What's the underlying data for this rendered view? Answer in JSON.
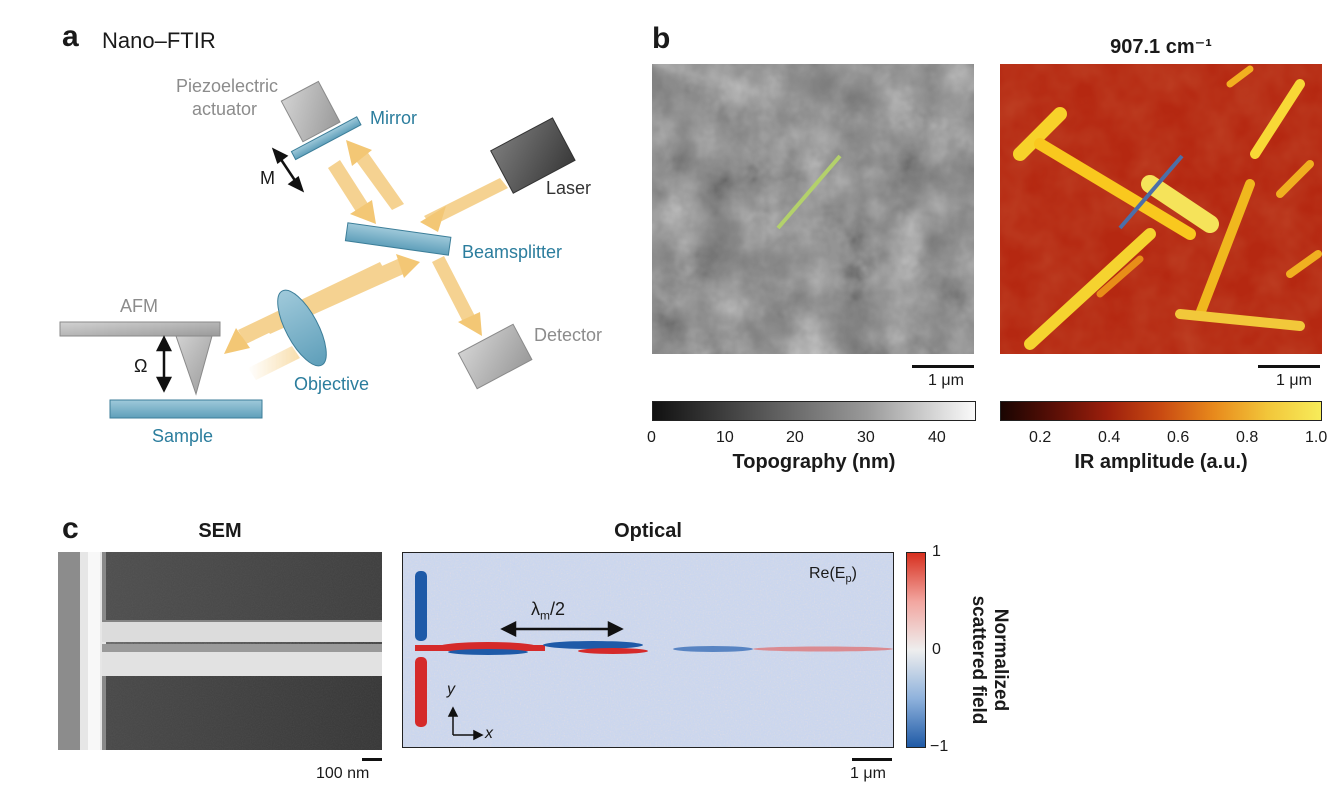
{
  "panel_a": {
    "letter": "a",
    "title": "Nano–FTIR",
    "labels": {
      "piezo_line1": "Piezoelectric",
      "piezo_line2": "actuator",
      "mirror": "Mirror",
      "laser": "Laser",
      "m": "M",
      "beamsplitter": "Beamsplitter",
      "afm": "AFM",
      "omega": "Ω",
      "objective": "Objective",
      "detector": "Detector",
      "sample": "Sample"
    },
    "colors": {
      "teal": "#2b7d9d",
      "beam": "#f2c267",
      "grey_part": "#b5b5b5"
    }
  },
  "panel_b": {
    "letter": "b",
    "ir_title": "907.1 cm⁻¹",
    "topo_scale": "1 μm",
    "ir_scale": "1 μm",
    "topo_colorbar": {
      "label": "Topography (nm)",
      "ticks": [
        "0",
        "10",
        "20",
        "30",
        "40"
      ]
    },
    "ir_colorbar": {
      "label": "IR amplitude (a.u.)",
      "ticks": [
        "0.2",
        "0.4",
        "0.6",
        "0.8",
        "1.0"
      ]
    },
    "line_colors": {
      "topo": "#b3d16b",
      "ir": "#4c6fa8"
    }
  },
  "panel_c": {
    "letter": "c",
    "sem_title": "SEM",
    "optical_title": "Optical",
    "sem_scale": "100 nm",
    "optical_scale": "1 μm",
    "re_label": "Re(E",
    "re_sub": "p",
    "re_close": ")",
    "lambda_main": "λ",
    "lambda_sub": "m",
    "lambda_tail": "/2",
    "axis_y": "y",
    "axis_x": "x",
    "colorbar": {
      "label_line1": "Normalized",
      "label_line2": "scattered field",
      "ticks": [
        "1",
        "0",
        "−1"
      ]
    }
  }
}
